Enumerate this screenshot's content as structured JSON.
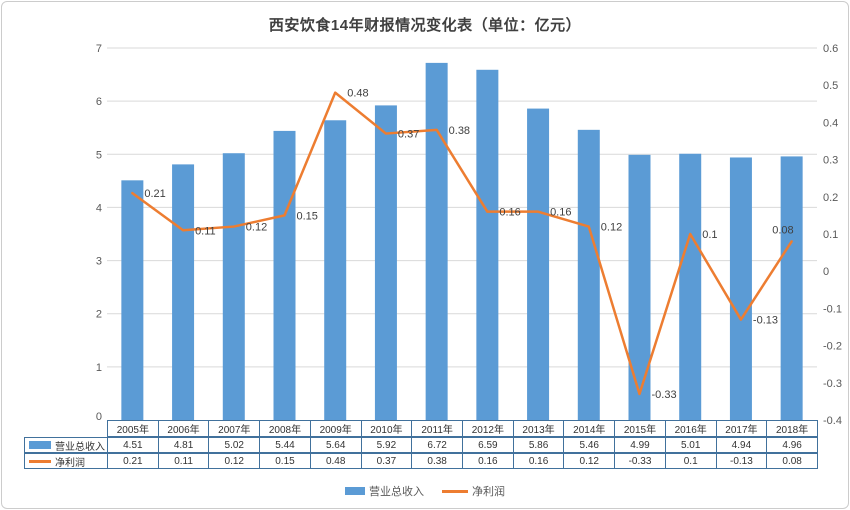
{
  "title": "西安饮食14年财报情况变化表（单位：亿元）",
  "legend": {
    "revenue": "营业总收入",
    "profit": "净利润"
  },
  "colors": {
    "bar": "#5B9BD5",
    "line": "#ED7D31",
    "table_border": "#41719C",
    "grid": "#D9D9D9",
    "axis_text": "#595959",
    "data_label": "#404040"
  },
  "chart_data": {
    "type": "combo-bar-line",
    "title": "西安饮食14年财报情况变化表（单位：亿元）",
    "categories": [
      "2005年",
      "2006年",
      "2007年",
      "2008年",
      "2009年",
      "2010年",
      "2011年",
      "2012年",
      "2013年",
      "2014年",
      "2015年",
      "2016年",
      "2017年",
      "2018年"
    ],
    "series": [
      {
        "name": "营业总收入",
        "type": "bar",
        "axis": "left",
        "color": "#5B9BD5",
        "values": [
          4.51,
          4.81,
          5.02,
          5.44,
          5.64,
          5.92,
          6.72,
          6.59,
          5.86,
          5.46,
          4.99,
          5.01,
          4.94,
          4.96
        ]
      },
      {
        "name": "净利润",
        "type": "line",
        "axis": "right",
        "color": "#ED7D31",
        "values": [
          0.21,
          0.11,
          0.12,
          0.15,
          0.48,
          0.37,
          0.38,
          0.16,
          0.16,
          0.12,
          -0.33,
          0.1,
          -0.13,
          0.08
        ]
      }
    ],
    "left_axis": {
      "min": 0,
      "max": 7,
      "step": 1,
      "tick_labels": [
        "0",
        "1",
        "2",
        "3",
        "4",
        "5",
        "6",
        "7"
      ]
    },
    "right_axis": {
      "min": -0.4,
      "max": 0.6,
      "step": 0.1,
      "tick_labels": [
        "-0.4",
        "-0.3",
        "-0.2",
        "-0.1",
        "0",
        "0.1",
        "0.2",
        "0.3",
        "0.4",
        "0.5",
        "0.6"
      ]
    },
    "grid": true,
    "legend_position": "bottom",
    "data_table_shown": true,
    "line_data_labels": [
      "0.21",
      "0.11",
      "0.12",
      "0.15",
      "0.48",
      "0.37",
      "0.38",
      "0.16",
      "0.16",
      "0.12",
      "-0.33",
      "0.1",
      "-0.13",
      "0.08"
    ]
  }
}
